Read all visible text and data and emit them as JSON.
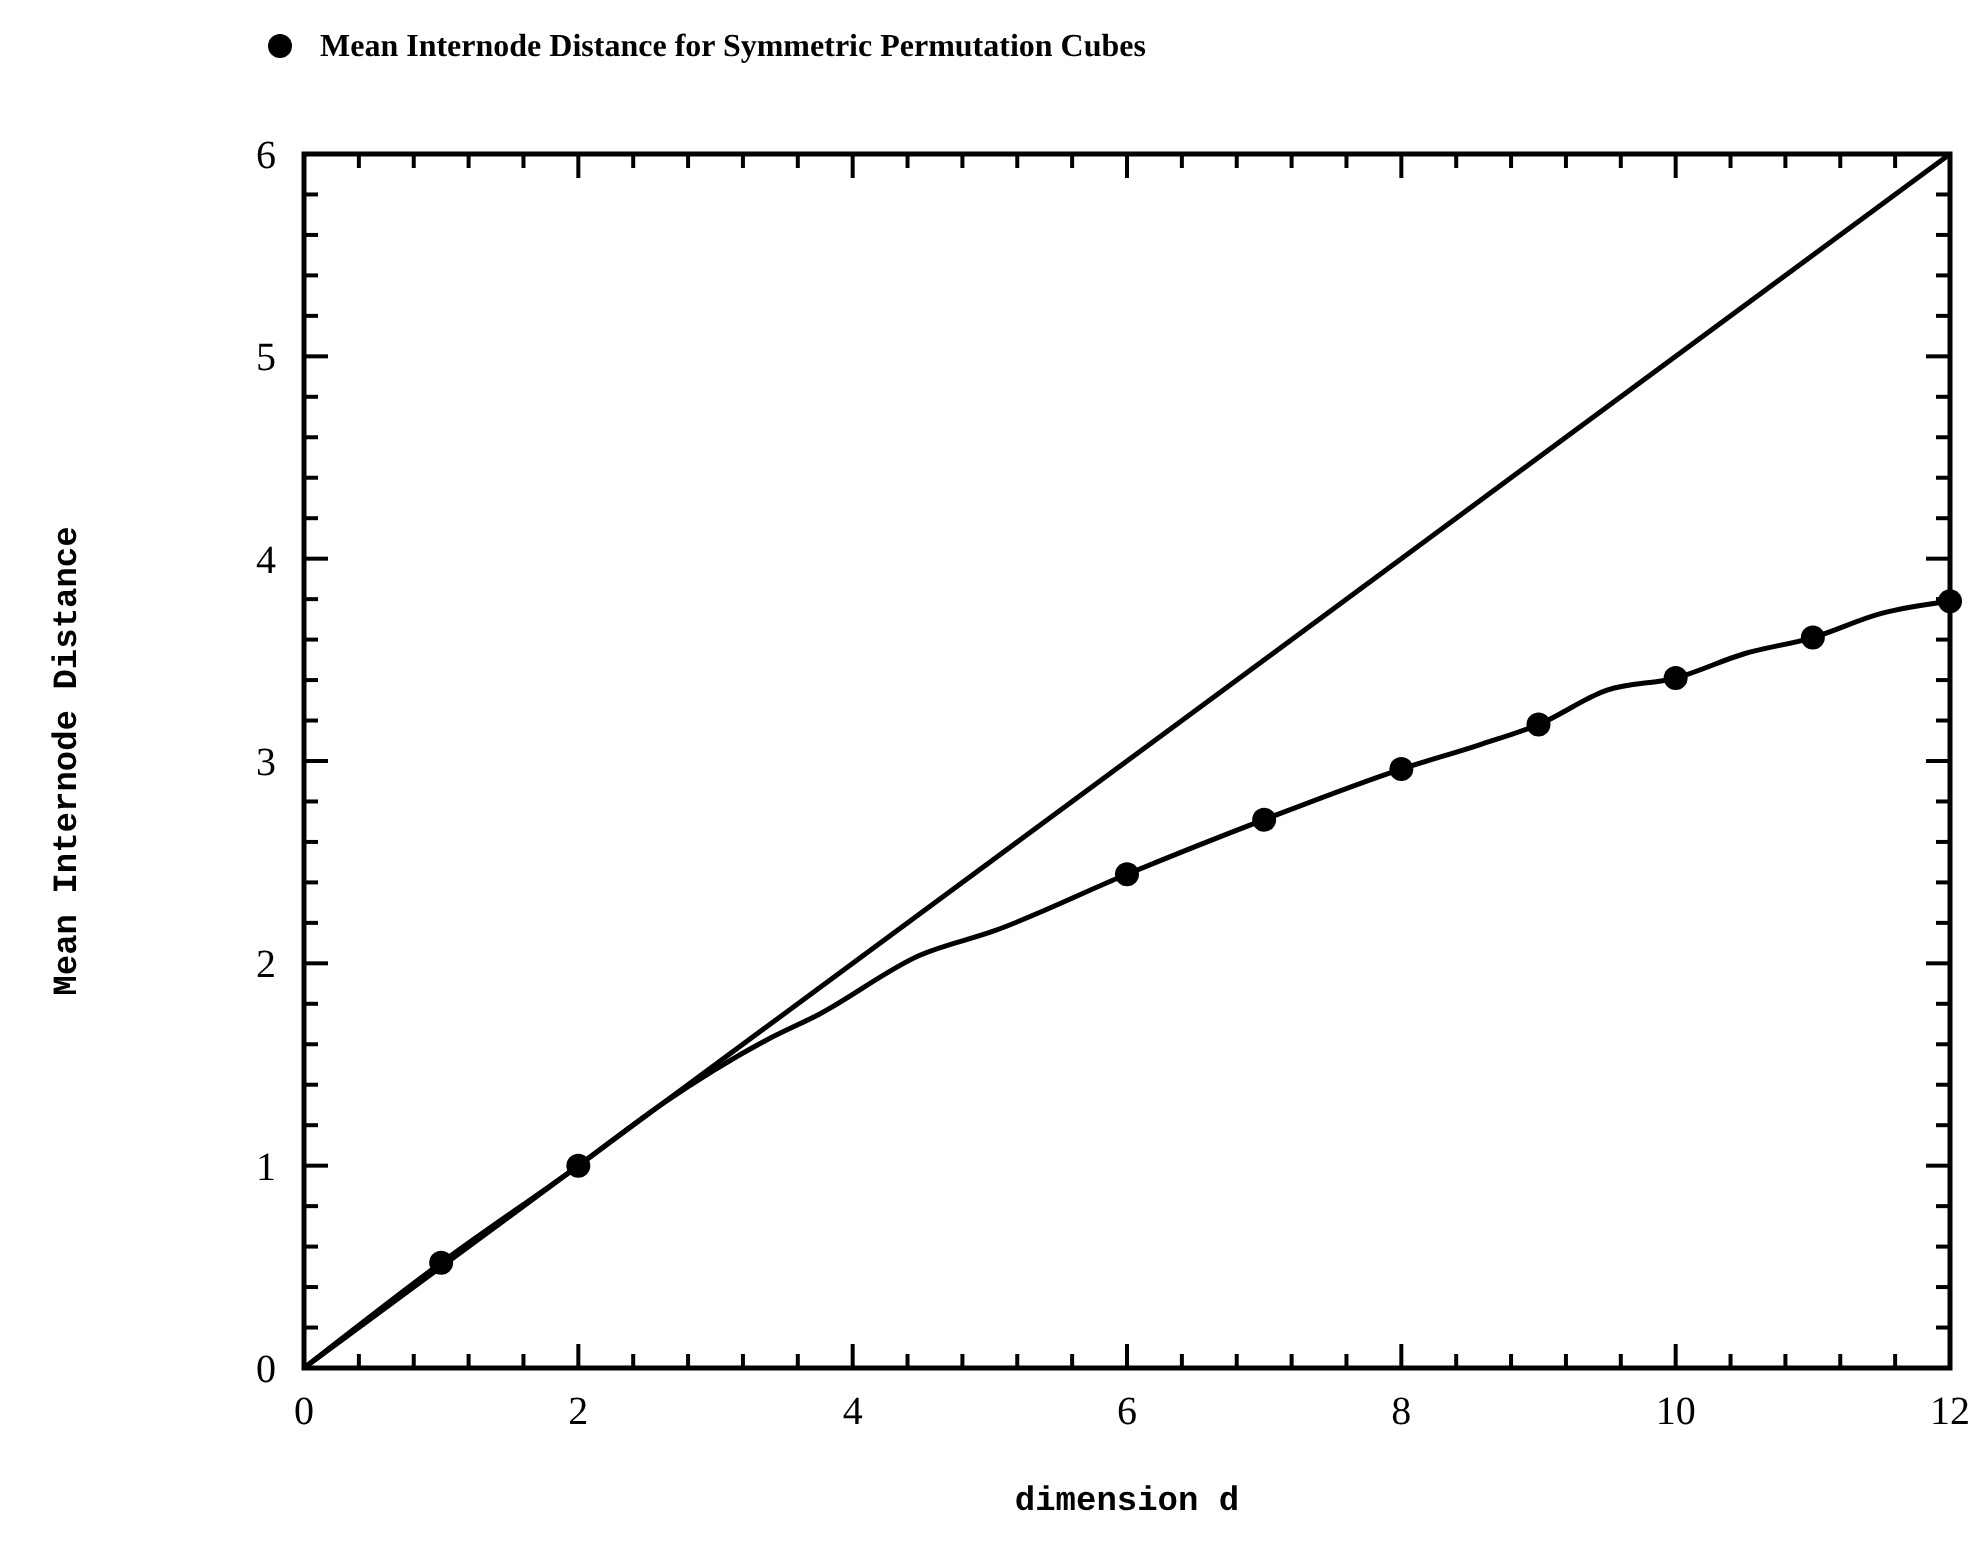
{
  "chart_data": {
    "type": "line",
    "xlabel": "dimension d",
    "ylabel": "Mean Internode Distance",
    "xlim": [
      0,
      12
    ],
    "ylim": [
      0,
      6
    ],
    "xticks": [
      0,
      {
        "value": 0.4,
        "label": null
      },
      {
        "value": 0.8,
        "label": null
      },
      {
        "value": 1.2,
        "label": null
      },
      {
        "value": 1.6,
        "label": null
      },
      2,
      {
        "value": 2.4,
        "label": null
      },
      {
        "value": 2.8,
        "label": null
      },
      {
        "value": 3.2,
        "label": null
      },
      {
        "value": 3.6,
        "label": null
      },
      4,
      {
        "value": 4.4,
        "label": null
      },
      {
        "value": 4.8,
        "label": null
      },
      {
        "value": 5.2,
        "label": null
      },
      {
        "value": 5.6,
        "label": null
      },
      6,
      {
        "value": 6.4,
        "label": null
      },
      {
        "value": 6.8,
        "label": null
      },
      {
        "value": 7.2,
        "label": null
      },
      {
        "value": 7.6,
        "label": null
      },
      8,
      {
        "value": 8.4,
        "label": null
      },
      {
        "value": 8.8,
        "label": null
      },
      {
        "value": 9.2,
        "label": null
      },
      {
        "value": 9.6,
        "label": null
      },
      10,
      {
        "value": 10.4,
        "label": null
      },
      {
        "value": 10.8,
        "label": null
      },
      {
        "value": 11.2,
        "label": null
      },
      {
        "value": 11.6,
        "label": null
      },
      12
    ],
    "yticks": [
      0,
      {
        "value": 0.2,
        "label": null
      },
      {
        "value": 0.4,
        "label": null
      },
      {
        "value": 0.6,
        "label": null
      },
      {
        "value": 0.8,
        "label": null
      },
      1,
      {
        "value": 1.2,
        "label": null
      },
      {
        "value": 1.4,
        "label": null
      },
      {
        "value": 1.6,
        "label": null
      },
      {
        "value": 1.8,
        "label": null
      },
      2,
      {
        "value": 2.2,
        "label": null
      },
      {
        "value": 2.4,
        "label": null
      },
      {
        "value": 2.6,
        "label": null
      },
      {
        "value": 2.8,
        "label": null
      },
      3,
      {
        "value": 3.2,
        "label": null
      },
      {
        "value": 3.4,
        "label": null
      },
      {
        "value": 3.6,
        "label": null
      },
      {
        "value": 3.8,
        "label": null
      },
      4,
      {
        "value": 4.2,
        "label": null
      },
      {
        "value": 4.4,
        "label": null
      },
      {
        "value": 4.6,
        "label": null
      },
      {
        "value": 4.8,
        "label": null
      },
      5,
      {
        "value": 5.2,
        "label": null
      },
      {
        "value": 5.4,
        "label": null
      },
      {
        "value": 5.6,
        "label": null
      },
      {
        "value": 5.8,
        "label": null
      },
      6
    ],
    "grid": false,
    "legend": "top left",
    "line_style": "solid",
    "series": [
      {
        "type": "scatter",
        "name": "Mean Internode Distance for Symmetric Permutation Cubes",
        "color": "#000000",
        "marker": "circle",
        "x": [
          1,
          2,
          6,
          7,
          8,
          9,
          10,
          11,
          12
        ],
        "values": [
          0.52,
          1.0,
          2.44,
          2.71,
          2.96,
          3.18,
          3.41,
          3.61,
          3.79
        ]
      },
      {
        "color": "#000000",
        "marker": "none",
        "x": [
          0,
          12
        ],
        "values": [
          0,
          6
        ]
      },
      {
        "color": "#000000",
        "marker": "none",
        "x": [
          0,
          1,
          2,
          2.6,
          3.37,
          3.76,
          4.49,
          5.03,
          6,
          7,
          8,
          8.57,
          9,
          9.5,
          10,
          10.5,
          11,
          11.5,
          12
        ],
        "values": [
          0,
          0.52,
          1.0,
          1.3,
          1.62,
          1.75,
          2.04,
          2.16,
          2.44,
          2.71,
          2.96,
          3.08,
          3.18,
          3.35,
          3.41,
          3.53,
          3.61,
          3.73,
          3.79
        ]
      }
    ]
  }
}
